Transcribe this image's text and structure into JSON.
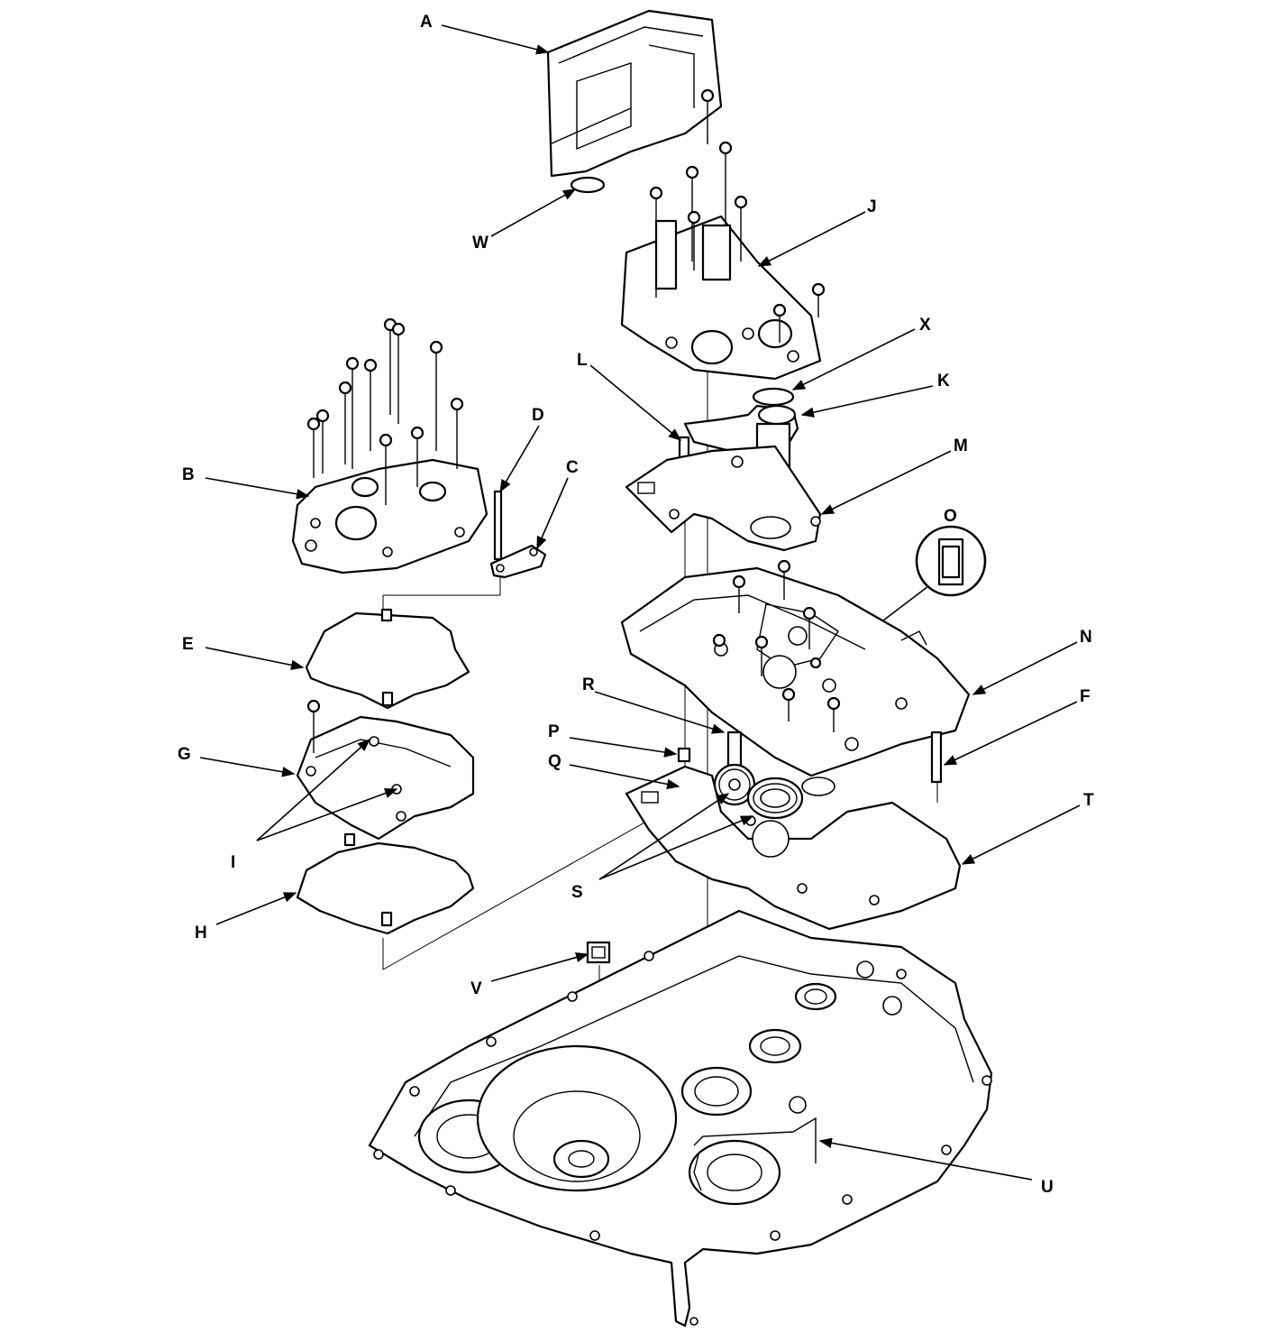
{
  "diagram": {
    "labels": {
      "A": "A",
      "B": "B",
      "C": "C",
      "D": "D",
      "E": "E",
      "F": "F",
      "G": "G",
      "H": "H",
      "I": "I",
      "J": "J",
      "K": "K",
      "L": "L",
      "M": "M",
      "N": "N",
      "O": "O",
      "P": "P",
      "Q": "Q",
      "R": "R",
      "S": "S",
      "T": "T",
      "U": "U",
      "V": "V",
      "W": "W",
      "X": "X"
    },
    "line_color": "#000000",
    "background": "#ffffff"
  }
}
